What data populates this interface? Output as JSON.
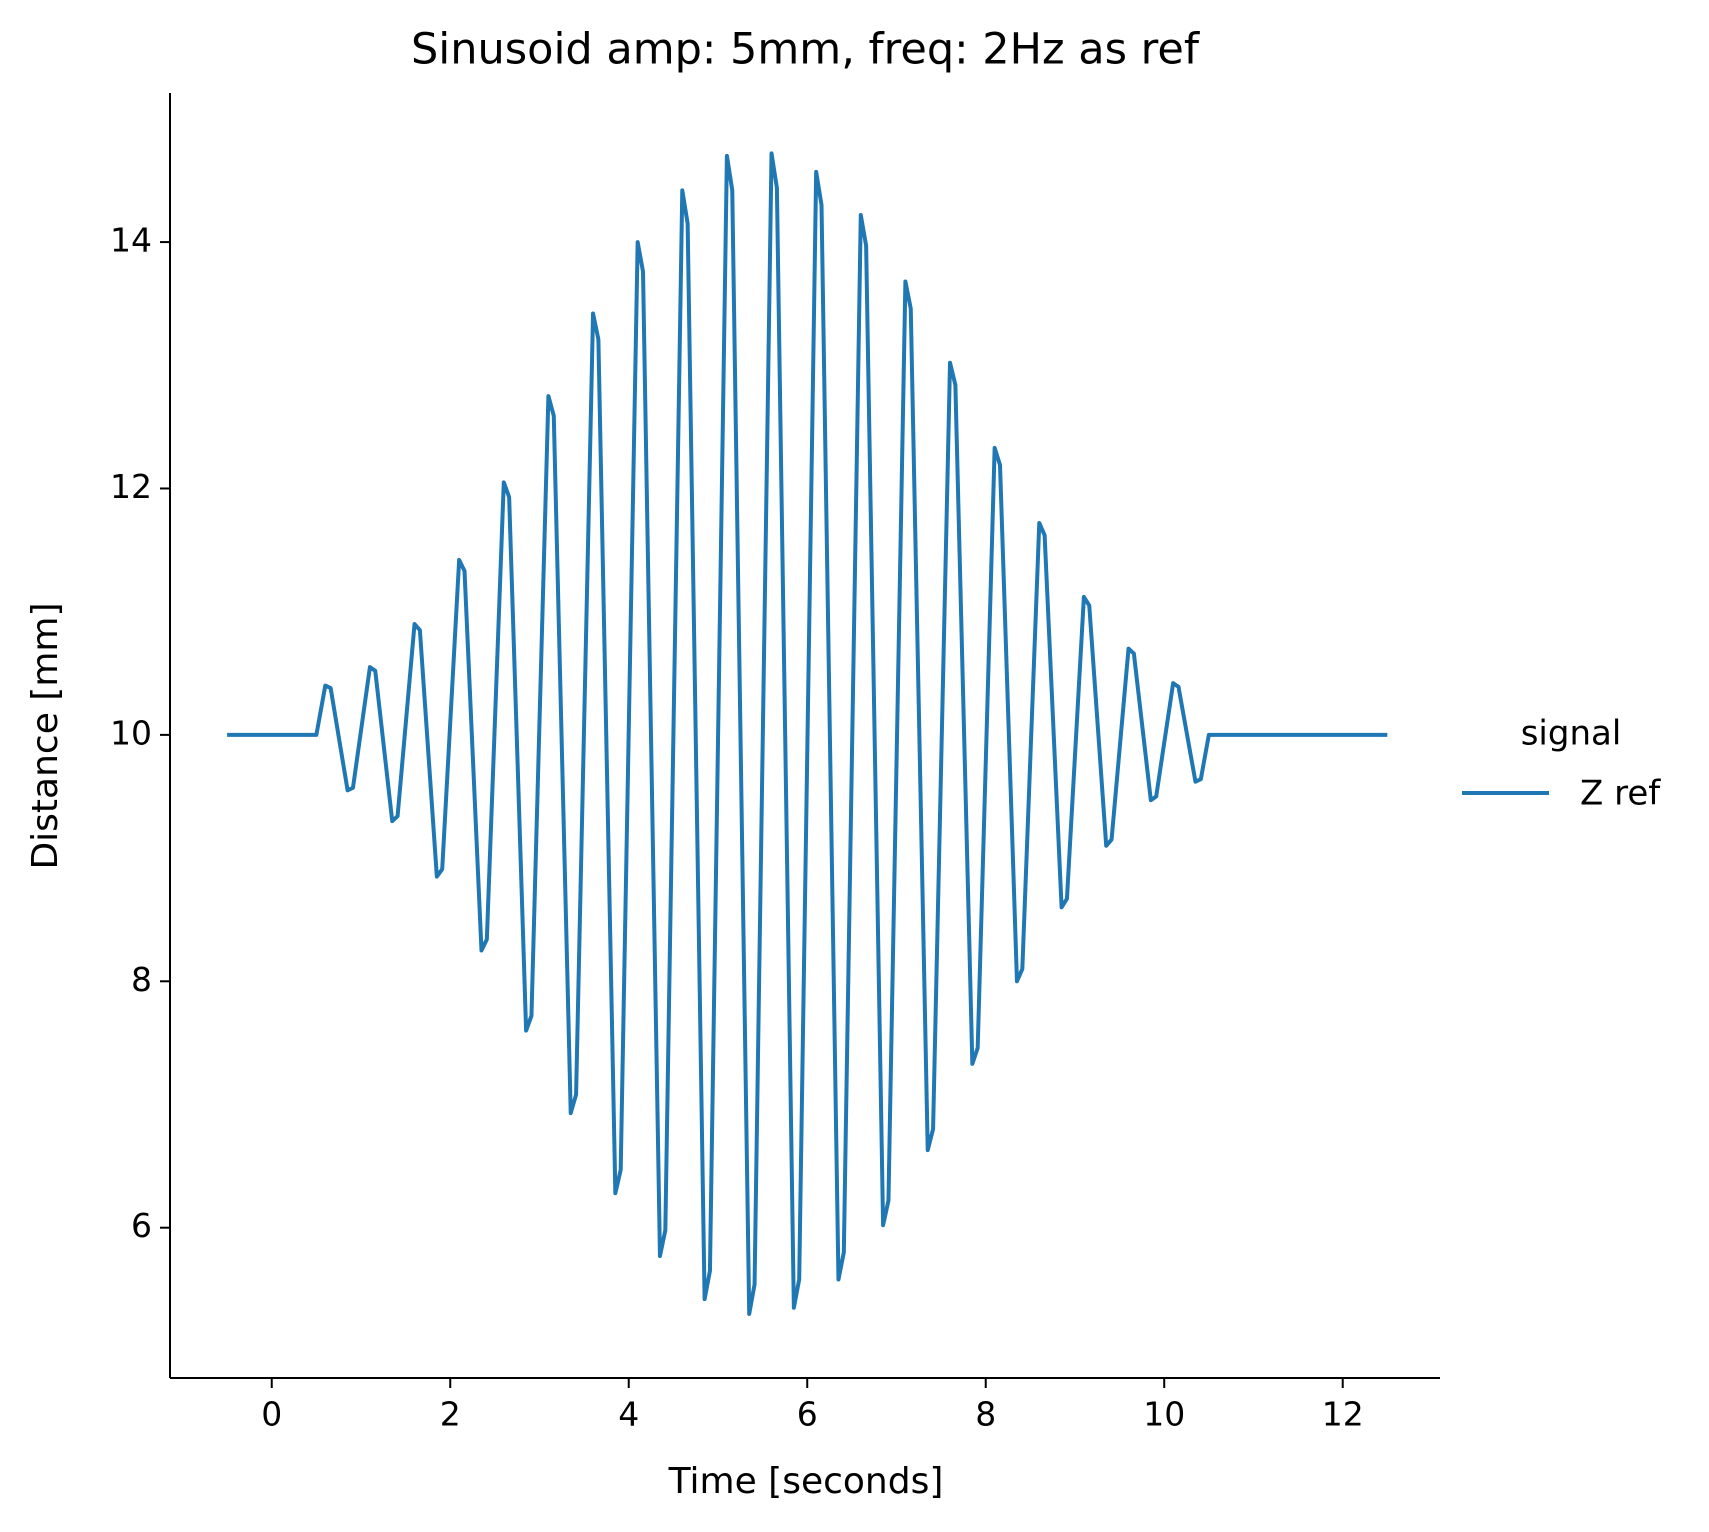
{
  "chart_data": {
    "type": "line",
    "title": "Sinusoid amp: 5mm, freq: 2Hz as ref",
    "xlabel": "Time [seconds]",
    "ylabel": "Distance [mm]",
    "legend_title": "signal",
    "legend_position": "right",
    "xlim": [
      -1.14,
      13.09
    ],
    "ylim": [
      4.78,
      15.21
    ],
    "xticks": [
      0,
      2,
      4,
      6,
      8,
      10,
      12
    ],
    "yticks": [
      6,
      8,
      10,
      12,
      14
    ],
    "grid": false,
    "x": [
      -0.5,
      0.5,
      0.6,
      0.66,
      0.85,
      0.91,
      1.1,
      1.16,
      1.35,
      1.41,
      1.6,
      1.66,
      1.85,
      1.91,
      2.1,
      2.16,
      2.35,
      2.41,
      2.6,
      2.66,
      2.85,
      2.91,
      3.1,
      3.16,
      3.35,
      3.41,
      3.6,
      3.66,
      3.85,
      3.91,
      4.1,
      4.16,
      4.35,
      4.41,
      4.6,
      4.66,
      4.85,
      4.91,
      5.1,
      5.16,
      5.35,
      5.41,
      5.6,
      5.66,
      5.85,
      5.91,
      6.1,
      6.16,
      6.35,
      6.41,
      6.6,
      6.66,
      6.85,
      6.91,
      7.1,
      7.16,
      7.35,
      7.41,
      7.6,
      7.66,
      7.85,
      7.91,
      8.1,
      8.16,
      8.35,
      8.41,
      8.6,
      8.66,
      8.85,
      8.91,
      9.1,
      9.16,
      9.35,
      9.41,
      9.6,
      9.66,
      9.85,
      9.91,
      10.1,
      10.16,
      10.35,
      10.41,
      10.5,
      12.5
    ],
    "series": [
      {
        "name": "Z ref",
        "color": "#1f77b4",
        "values": [
          10,
          10,
          10.4,
          10.38,
          9.55,
          9.57,
          10.55,
          10.52,
          9.3,
          9.34,
          10.9,
          10.85,
          8.85,
          8.91,
          11.42,
          11.33,
          8.25,
          8.34,
          12.05,
          11.93,
          7.6,
          7.72,
          12.75,
          12.59,
          6.93,
          7.08,
          13.42,
          13.21,
          6.28,
          6.47,
          14.0,
          13.76,
          5.77,
          5.98,
          14.42,
          14.15,
          5.42,
          5.65,
          14.7,
          14.42,
          5.3,
          5.54,
          14.72,
          14.44,
          5.35,
          5.58,
          14.57,
          14.3,
          5.58,
          5.8,
          14.22,
          13.97,
          6.02,
          6.22,
          13.68,
          13.46,
          6.63,
          6.8,
          13.02,
          12.84,
          7.33,
          7.46,
          12.33,
          12.19,
          8.0,
          8.1,
          11.72,
          11.62,
          8.6,
          8.67,
          11.12,
          11.05,
          9.1,
          9.15,
          10.7,
          10.66,
          9.47,
          9.5,
          10.42,
          10.39,
          9.62,
          9.64,
          10,
          10
        ]
      }
    ]
  }
}
